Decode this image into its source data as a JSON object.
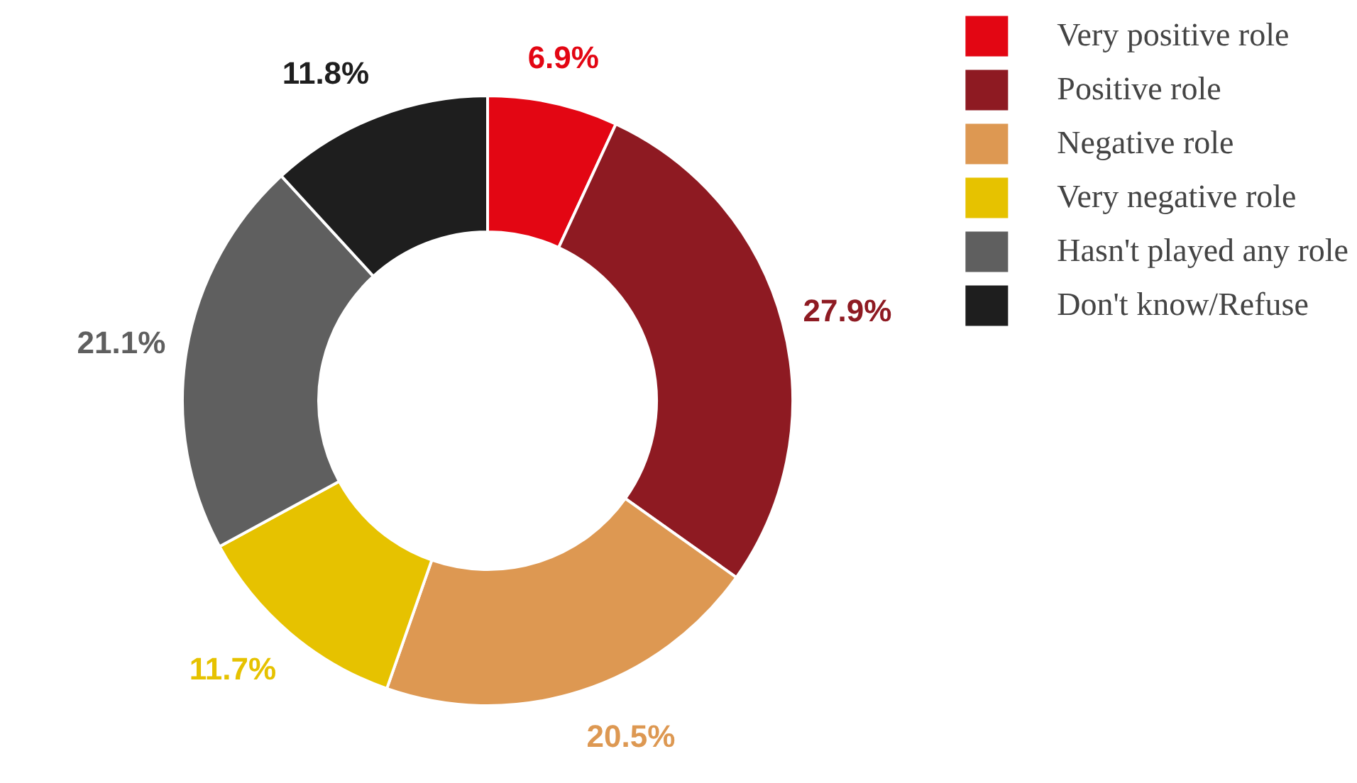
{
  "chart_data": {
    "type": "donut",
    "categories": [
      "Very positive role",
      "Positive role",
      "Negative role",
      "Very negative role",
      "Hasn't played any role",
      "Don't know/Refuse"
    ],
    "values": [
      6.9,
      27.9,
      20.5,
      11.7,
      21.1,
      11.8
    ],
    "colors": [
      "#e30613",
      "#8e1a22",
      "#dd9852",
      "#e6c200",
      "#5f5f5f",
      "#1e1e1e"
    ],
    "value_labels": [
      "6.9%",
      "27.9%",
      "20.5%",
      "11.7%",
      "21.1%",
      "11.8%"
    ],
    "legend": "top right"
  }
}
